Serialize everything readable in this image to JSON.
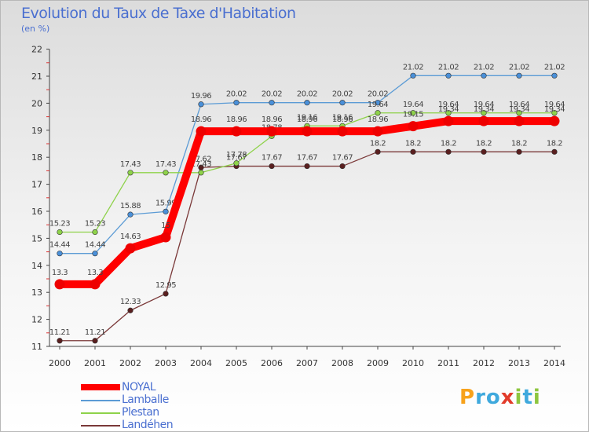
{
  "title": "Evolution du Taux de Taxe d'Habitation",
  "subtitle": "(en %)",
  "logo": {
    "text": "Proxiti",
    "letters": [
      {
        "ch": "P",
        "color": "#f7a21b"
      },
      {
        "ch": "r",
        "color": "#3fa9dd"
      },
      {
        "ch": "o",
        "color": "#3fa9dd"
      },
      {
        "ch": "x",
        "color": "#e23b2a"
      },
      {
        "ch": "i",
        "color": "#8dc63f"
      },
      {
        "ch": "t",
        "color": "#3fa9dd"
      },
      {
        "ch": "i",
        "color": "#8dc63f"
      }
    ]
  },
  "chart_data": {
    "type": "line",
    "title": "Evolution du Taux de Taxe d'Habitation",
    "ylabel": "(en %)",
    "xlabel": "",
    "x": [
      "2000",
      "2001",
      "2002",
      "2003",
      "2004",
      "2005",
      "2006",
      "2007",
      "2008",
      "2009",
      "2010",
      "2011",
      "2012",
      "2013",
      "2014"
    ],
    "ylim": [
      11,
      22
    ],
    "yticks": [
      "11",
      "12",
      "13",
      "14",
      "15",
      "16",
      "17",
      "18",
      "19",
      "20",
      "21",
      "22"
    ],
    "grid": false,
    "legend": "bottom-left",
    "series": [
      {
        "name": "NOYAL",
        "color": "#ff0000",
        "marker": "#ee0000",
        "style": "thick",
        "values": [
          13.3,
          13.3,
          14.63,
          15.04,
          18.96,
          18.96,
          18.96,
          18.96,
          18.96,
          18.96,
          19.15,
          19.34,
          19.34,
          19.34,
          19.34
        ],
        "labels": [
          "13.3",
          "13.3",
          "14.63",
          "15",
          "18.96",
          "18.96",
          "18.96",
          "18.96",
          "18.96",
          "18.96",
          "19.15",
          "19.34",
          "19.34",
          "19.34",
          "19.34"
        ]
      },
      {
        "name": "Lamballe",
        "color": "#5b9bd5",
        "marker": "#4a90d9",
        "style": "thin",
        "values": [
          14.44,
          14.44,
          15.88,
          15.99,
          19.96,
          20.02,
          20.02,
          20.02,
          20.02,
          20.02,
          21.02,
          21.02,
          21.02,
          21.02,
          21.02
        ],
        "labels": [
          "14.44",
          "14.44",
          "15.88",
          "15.99",
          "19.96",
          "20.02",
          "20.02",
          "20.02",
          "20.02",
          "20.02",
          "21.02",
          "21.02",
          "21.02",
          "21.02",
          "21.02"
        ]
      },
      {
        "name": "Plestan",
        "color": "#8ed24a",
        "marker": "#8ed24a",
        "style": "thin",
        "values": [
          15.23,
          15.23,
          17.43,
          17.43,
          17.43,
          17.78,
          18.78,
          19.16,
          19.16,
          19.64,
          19.64,
          19.64,
          19.64,
          19.64,
          19.64
        ],
        "labels": [
          "15.23",
          "15.23",
          "17.43",
          "17.43",
          "17.43",
          "17.78",
          "18.78",
          "19.16",
          "19.16",
          "19.64",
          "19.64",
          "19.64",
          "19.64",
          "19.64",
          "19.64"
        ]
      },
      {
        "name": "Landéhen",
        "color": "#7a3838",
        "marker": "#5a1f1f",
        "style": "thin",
        "values": [
          11.21,
          11.21,
          12.33,
          12.95,
          17.62,
          17.67,
          17.67,
          17.67,
          17.67,
          18.2,
          18.2,
          18.2,
          18.2,
          18.2,
          18.2
        ],
        "labels": [
          "11.21",
          "11.21",
          "12.33",
          "12.95",
          "17.62",
          "17.67",
          "17.67",
          "17.67",
          "17.67",
          "18.2",
          "18.2",
          "18.2",
          "18.2",
          "18.2",
          "18.2"
        ]
      }
    ]
  }
}
